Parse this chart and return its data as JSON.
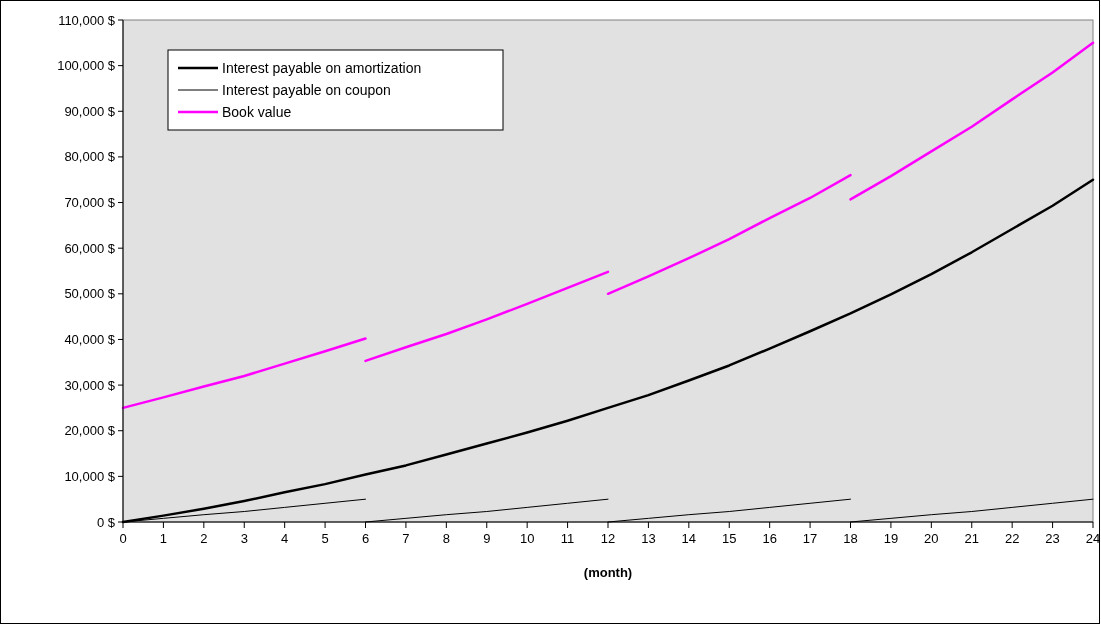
{
  "chart_data": {
    "type": "line",
    "xlabel": "(month)",
    "x": [
      0,
      1,
      2,
      3,
      4,
      5,
      6,
      7,
      8,
      9,
      10,
      11,
      12,
      13,
      14,
      15,
      16,
      17,
      18,
      19,
      20,
      21,
      22,
      23,
      24
    ],
    "series": [
      {
        "name": "Interest payable on amortization",
        "color": "#000000",
        "values": [
          0,
          1400,
          2900,
          4600,
          6500,
          8300,
          10400,
          12400,
          14800,
          17200,
          19600,
          22200,
          25000,
          27800,
          31000,
          34300,
          38000,
          41800,
          45700,
          49900,
          54300,
          59100,
          64200,
          69300,
          75000
        ]
      },
      {
        "name": "Interest payable on coupon",
        "color": "#000000",
        "x": [
          0,
          1,
          2,
          3,
          4,
          5,
          6,
          null,
          6,
          7,
          8,
          9,
          10,
          11,
          12,
          null,
          12,
          13,
          14,
          15,
          16,
          17,
          18,
          null,
          18,
          19,
          20,
          21,
          22,
          23,
          24
        ],
        "values": [
          0,
          800,
          1600,
          2300,
          3200,
          4100,
          5000,
          null,
          0,
          800,
          1600,
          2300,
          3200,
          4100,
          5000,
          null,
          0,
          800,
          1600,
          2300,
          3200,
          4100,
          5000,
          null,
          0,
          800,
          1600,
          2300,
          3200,
          4100,
          5000
        ]
      },
      {
        "name": "Book value",
        "color": "#ff00ff",
        "x": [
          0,
          1,
          2,
          3,
          4,
          5,
          6,
          null,
          6,
          7,
          8,
          9,
          10,
          11,
          12,
          null,
          12,
          13,
          14,
          15,
          16,
          17,
          18,
          null,
          18,
          19,
          20,
          21,
          22,
          23,
          24
        ],
        "values": [
          25000,
          27300,
          29700,
          32000,
          34700,
          37400,
          40200,
          null,
          35300,
          38300,
          41200,
          44400,
          47800,
          51300,
          54800,
          null,
          50000,
          53800,
          57800,
          62000,
          66600,
          71000,
          76000,
          null,
          70700,
          75800,
          81200,
          86600,
          92600,
          98500,
          105000
        ]
      }
    ],
    "xlim": [
      0,
      24
    ],
    "xticks": [
      0,
      1,
      2,
      3,
      4,
      5,
      6,
      7,
      8,
      9,
      10,
      11,
      12,
      13,
      14,
      15,
      16,
      17,
      18,
      19,
      20,
      21,
      22,
      23,
      24
    ],
    "ylim": [
      0,
      110000
    ],
    "yticks": [
      {
        "value": 0,
        "label": "0 $"
      },
      {
        "value": 10000,
        "label": "10,000 $"
      },
      {
        "value": 20000,
        "label": "20,000 $"
      },
      {
        "value": 30000,
        "label": "30,000 $"
      },
      {
        "value": 40000,
        "label": "40,000 $"
      },
      {
        "value": 50000,
        "label": "50,000 $"
      },
      {
        "value": 60000,
        "label": "60,000 $"
      },
      {
        "value": 70000,
        "label": "70,000 $"
      },
      {
        "value": 80000,
        "label": "80,000 $"
      },
      {
        "value": 90000,
        "label": "90,000 $"
      },
      {
        "value": 100000,
        "label": "100,000 $"
      },
      {
        "value": 110000,
        "label": "110,000 $"
      }
    ],
    "grid": false,
    "legend": "top left",
    "marker": "none",
    "line_style": "solid"
  }
}
